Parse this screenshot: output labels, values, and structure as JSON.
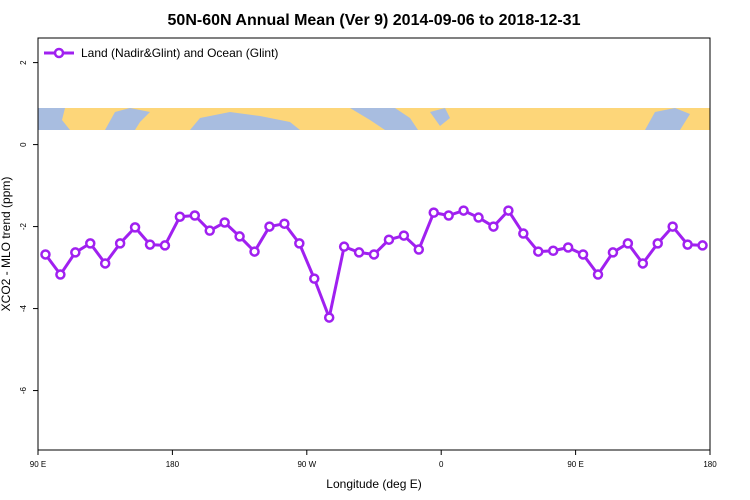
{
  "chart_data": {
    "type": "line",
    "title": "50N-60N Annual Mean (Ver 9)   2014-09-06 to 2018-12-31",
    "x_label": "Longitude (deg E)",
    "y_label": "XCO2 - MLO trend (ppm)",
    "x": [
      95,
      105,
      115,
      125,
      135,
      145,
      155,
      165,
      175,
      185,
      195,
      205,
      215,
      225,
      235,
      245,
      255,
      265,
      275,
      285,
      295,
      305,
      315,
      325,
      335,
      345,
      355,
      365,
      375,
      385,
      395,
      405,
      415,
      425,
      435,
      445,
      455,
      465,
      475,
      485,
      495,
      505,
      515,
      525,
      535
    ],
    "series": [
      {
        "name": "Land (Nadir&Glint) and Ocean (Glint)",
        "color": "#a020f0",
        "values": [
          -2.68,
          -3.17,
          -2.63,
          -2.41,
          -2.9,
          -2.41,
          -2.02,
          -2.44,
          -2.46,
          -1.76,
          -1.73,
          -2.1,
          -1.9,
          -2.24,
          -2.61,
          -2.0,
          -1.93,
          -2.41,
          -3.27,
          -4.22,
          -2.49,
          -2.63,
          -2.68,
          -2.32,
          -2.22,
          -2.56,
          -1.66,
          -1.73,
          -1.61,
          -1.78,
          -2.0,
          -1.61,
          -2.17,
          -2.61,
          -2.59,
          -2.51,
          -2.68,
          -3.17,
          -2.63,
          -2.41,
          -2.9,
          -2.41,
          -2.0,
          -2.44,
          -2.46
        ]
      }
    ],
    "xlim": [
      90,
      540
    ],
    "xticks": [
      {
        "value": 90,
        "label": "90 E"
      },
      {
        "value": 180,
        "label": "180"
      },
      {
        "value": 270,
        "label": "90 W"
      },
      {
        "value": 360,
        "label": "0"
      },
      {
        "value": 450,
        "label": "90 E"
      },
      {
        "value": 540,
        "label": "180"
      }
    ],
    "ylim": [
      -7.45,
      2.6
    ],
    "yticks": [
      2,
      0,
      -2,
      -4,
      -6
    ],
    "legend": "top-left"
  }
}
